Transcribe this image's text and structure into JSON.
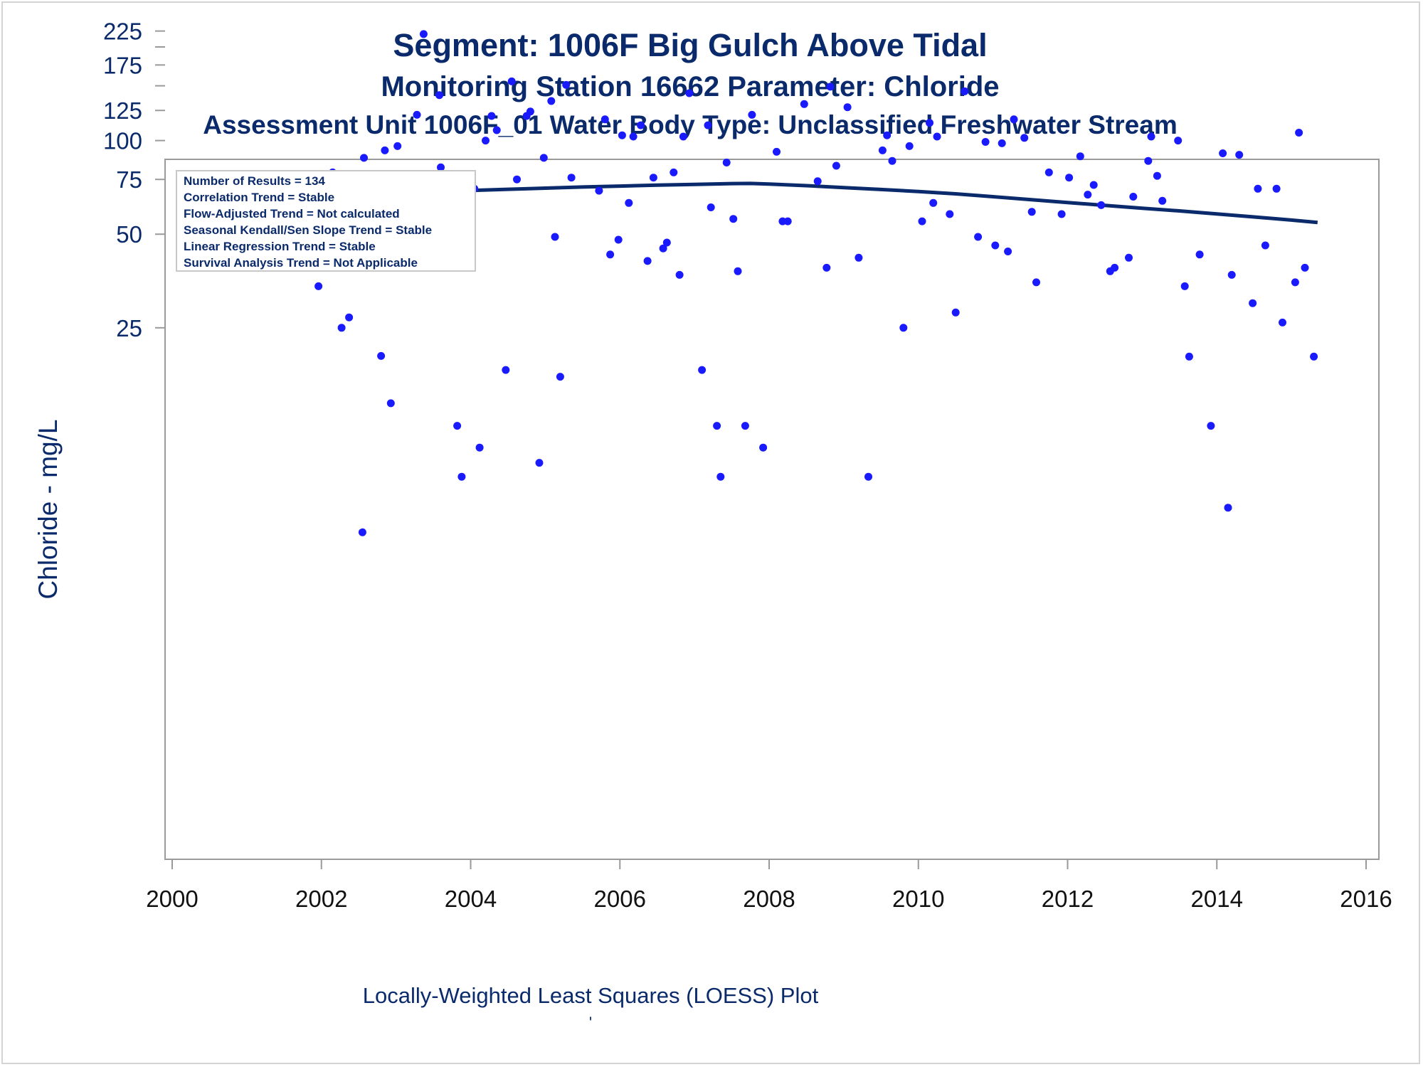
{
  "titles": {
    "line1": "Segment: 1006F  Big Gulch Above Tidal",
    "line2": "Monitoring Station 16662 Parameter: Chloride",
    "line3": "Assessment Unit 1006F_01   Water Body Type: Unclassified Freshwater Stream"
  },
  "footnotes": {
    "line1": "Locally-Weighted Least Squares (LOESS) Plot",
    "line2": "'"
  },
  "colors": {
    "text": "#0a2a6b",
    "points": "#1a1aff",
    "loess": "#0a2a6b",
    "axis": "#9a9a9a"
  },
  "chart_data": {
    "type": "scatter",
    "title": "Segment: 1006F  Big Gulch Above Tidal",
    "xlabel": "",
    "ylabel": "Chloride - mg/L",
    "xlim": [
      2000,
      2016
    ],
    "ylim": [
      5,
      225
    ],
    "y_scale": "log",
    "x_ticks": [
      2000,
      2002,
      2004,
      2006,
      2008,
      2010,
      2012,
      2014,
      2016
    ],
    "y_ticks": [
      25,
      50,
      75,
      100,
      125,
      175,
      225
    ],
    "y_minor_ticks": [
      150,
      200
    ],
    "grid": false,
    "legend_position": "top-left",
    "stats_box": [
      "Number of Results = 134",
      "Correlation Trend = Stable",
      "Flow-Adjusted Trend = Not calculated",
      "Seasonal Kendall/Sen Slope Trend = Stable",
      "Linear Regression Trend = Stable",
      "Survival Analysis Trend = Not Applicable"
    ],
    "points": [
      [
        2001.92,
        42
      ],
      [
        2001.96,
        34
      ],
      [
        2002.02,
        46
      ],
      [
        2002.15,
        79
      ],
      [
        2002.18,
        73
      ],
      [
        2002.27,
        25
      ],
      [
        2002.37,
        27
      ],
      [
        2002.45,
        53
      ],
      [
        2002.55,
        5.5
      ],
      [
        2002.57,
        88
      ],
      [
        2002.68,
        56
      ],
      [
        2002.8,
        20.3
      ],
      [
        2002.85,
        93
      ],
      [
        2002.93,
        14.3
      ],
      [
        2003.02,
        96
      ],
      [
        2003.1,
        60
      ],
      [
        2003.28,
        121
      ],
      [
        2003.37,
        220
      ],
      [
        2003.48,
        39
      ],
      [
        2003.58,
        140
      ],
      [
        2003.6,
        82
      ],
      [
        2003.68,
        54
      ],
      [
        2003.82,
        12.1
      ],
      [
        2003.88,
        8.3
      ],
      [
        2003.93,
        77
      ],
      [
        2004.05,
        70
      ],
      [
        2004.12,
        10.3
      ],
      [
        2004.2,
        100
      ],
      [
        2004.28,
        120
      ],
      [
        2004.35,
        108
      ],
      [
        2004.47,
        18.3
      ],
      [
        2004.55,
        155
      ],
      [
        2004.62,
        75
      ],
      [
        2004.75,
        120
      ],
      [
        2004.8,
        124
      ],
      [
        2004.92,
        9.2
      ],
      [
        2004.98,
        88
      ],
      [
        2005.08,
        134
      ],
      [
        2005.13,
        49
      ],
      [
        2005.2,
        17.4
      ],
      [
        2005.28,
        151
      ],
      [
        2005.35,
        76
      ],
      [
        2005.72,
        69
      ],
      [
        2005.8,
        117
      ],
      [
        2005.87,
        43
      ],
      [
        2005.98,
        48
      ],
      [
        2006.03,
        104
      ],
      [
        2006.12,
        63
      ],
      [
        2006.18,
        103
      ],
      [
        2006.28,
        112
      ],
      [
        2006.37,
        41
      ],
      [
        2006.45,
        76
      ],
      [
        2006.58,
        45
      ],
      [
        2006.63,
        47
      ],
      [
        2006.72,
        79
      ],
      [
        2006.8,
        37
      ],
      [
        2006.85,
        103
      ],
      [
        2006.93,
        142
      ],
      [
        2007.1,
        18.3
      ],
      [
        2007.18,
        112
      ],
      [
        2007.22,
        61
      ],
      [
        2007.3,
        12.1
      ],
      [
        2007.35,
        8.3
      ],
      [
        2007.43,
        85
      ],
      [
        2007.52,
        56
      ],
      [
        2007.58,
        38
      ],
      [
        2007.68,
        12.1
      ],
      [
        2007.77,
        121
      ],
      [
        2007.92,
        10.3
      ],
      [
        2008.1,
        92
      ],
      [
        2008.18,
        55
      ],
      [
        2008.25,
        55
      ],
      [
        2008.47,
        131
      ],
      [
        2008.65,
        74
      ],
      [
        2008.77,
        39
      ],
      [
        2008.82,
        149
      ],
      [
        2008.9,
        83
      ],
      [
        2009.05,
        128
      ],
      [
        2009.2,
        42
      ],
      [
        2009.33,
        8.3
      ],
      [
        2009.52,
        93
      ],
      [
        2009.58,
        104
      ],
      [
        2009.65,
        86
      ],
      [
        2009.8,
        25
      ],
      [
        2009.88,
        96
      ],
      [
        2010.05,
        55
      ],
      [
        2010.15,
        114
      ],
      [
        2010.2,
        63
      ],
      [
        2010.25,
        103
      ],
      [
        2010.42,
        58
      ],
      [
        2010.5,
        28
      ],
      [
        2010.62,
        144
      ],
      [
        2010.8,
        49
      ],
      [
        2010.9,
        99
      ],
      [
        2011.03,
        46
      ],
      [
        2011.12,
        98
      ],
      [
        2011.2,
        44
      ],
      [
        2011.28,
        117
      ],
      [
        2011.42,
        102
      ],
      [
        2011.52,
        59
      ],
      [
        2011.58,
        35
      ],
      [
        2011.75,
        79
      ],
      [
        2011.92,
        58
      ],
      [
        2012.02,
        76
      ],
      [
        2012.17,
        89
      ],
      [
        2012.27,
        67
      ],
      [
        2012.35,
        72
      ],
      [
        2012.45,
        62
      ],
      [
        2012.57,
        38
      ],
      [
        2012.63,
        39
      ],
      [
        2012.82,
        42
      ],
      [
        2012.88,
        66
      ],
      [
        2013.08,
        86
      ],
      [
        2013.12,
        103
      ],
      [
        2013.2,
        77
      ],
      [
        2013.27,
        64
      ],
      [
        2013.48,
        100
      ],
      [
        2013.57,
        34
      ],
      [
        2013.63,
        20.2
      ],
      [
        2013.77,
        43
      ],
      [
        2013.92,
        12.1
      ],
      [
        2014.08,
        91
      ],
      [
        2014.15,
        6.6
      ],
      [
        2014.2,
        37
      ],
      [
        2014.3,
        90
      ],
      [
        2014.48,
        30
      ],
      [
        2014.55,
        70
      ],
      [
        2014.65,
        46
      ],
      [
        2014.8,
        70
      ],
      [
        2014.88,
        26
      ],
      [
        2015.05,
        35
      ],
      [
        2015.1,
        106
      ],
      [
        2015.18,
        39
      ],
      [
        2015.3,
        20.2
      ]
    ],
    "loess": [
      [
        2001.92,
        66.5
      ],
      [
        2002.5,
        67.3
      ],
      [
        2003,
        67.9
      ],
      [
        2003.5,
        68.5
      ],
      [
        2004,
        69.1
      ],
      [
        2004.5,
        69.7
      ],
      [
        2005,
        70.3
      ],
      [
        2005.5,
        70.9
      ],
      [
        2006,
        71.4
      ],
      [
        2006.5,
        71.9
      ],
      [
        2007,
        72.3
      ],
      [
        2007.5,
        72.7
      ],
      [
        2007.75,
        72.8
      ],
      [
        2008,
        72.5
      ],
      [
        2008.5,
        71.6
      ],
      [
        2009,
        70.6
      ],
      [
        2009.5,
        69.6
      ],
      [
        2010,
        68.6
      ],
      [
        2010.5,
        67.4
      ],
      [
        2011,
        66.0
      ],
      [
        2011.5,
        64.6
      ],
      [
        2012,
        63.2
      ],
      [
        2012.5,
        61.9
      ],
      [
        2013,
        60.6
      ],
      [
        2013.5,
        59.4
      ],
      [
        2014,
        58.1
      ],
      [
        2014.5,
        56.8
      ],
      [
        2015,
        55.5
      ],
      [
        2015.35,
        54.5
      ]
    ]
  }
}
